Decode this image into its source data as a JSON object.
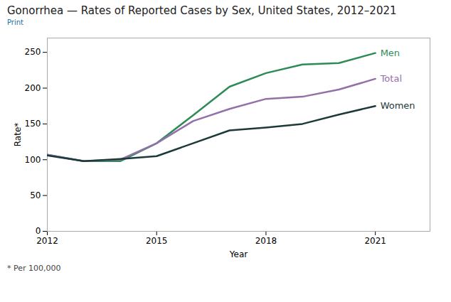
{
  "chart_data": {
    "type": "line",
    "title": "Gonorrhea — Rates of Reported Cases by Sex, United States, 2012–2021",
    "subtitle": "Print",
    "annotations": [
      "* Per 100,000"
    ],
    "xlabel": "Year",
    "ylabel": "Rate*",
    "x": [
      2012,
      2013,
      2014,
      2015,
      2016,
      2017,
      2018,
      2019,
      2020,
      2021
    ],
    "series": [
      {
        "name": "Men",
        "color": "#2e8b57",
        "values": [
          107,
          98,
          98,
          123,
          162,
          202,
          221,
          233,
          235,
          249
        ]
      },
      {
        "name": "Total",
        "color": "#9370a8",
        "values": [
          107,
          98,
          100,
          123,
          154,
          171,
          185,
          188,
          198,
          213
        ]
      },
      {
        "name": "Women",
        "color": "#1c3a38",
        "values": [
          106,
          98,
          101,
          105,
          123,
          141,
          145,
          150,
          163,
          175
        ]
      }
    ],
    "xlim": [
      2012,
      2022.5
    ],
    "xticks": [
      2012,
      2015,
      2018,
      2021
    ],
    "ylim": [
      0,
      270
    ],
    "yticks": [
      0,
      50,
      100,
      150,
      200,
      250
    ],
    "grid": false
  }
}
